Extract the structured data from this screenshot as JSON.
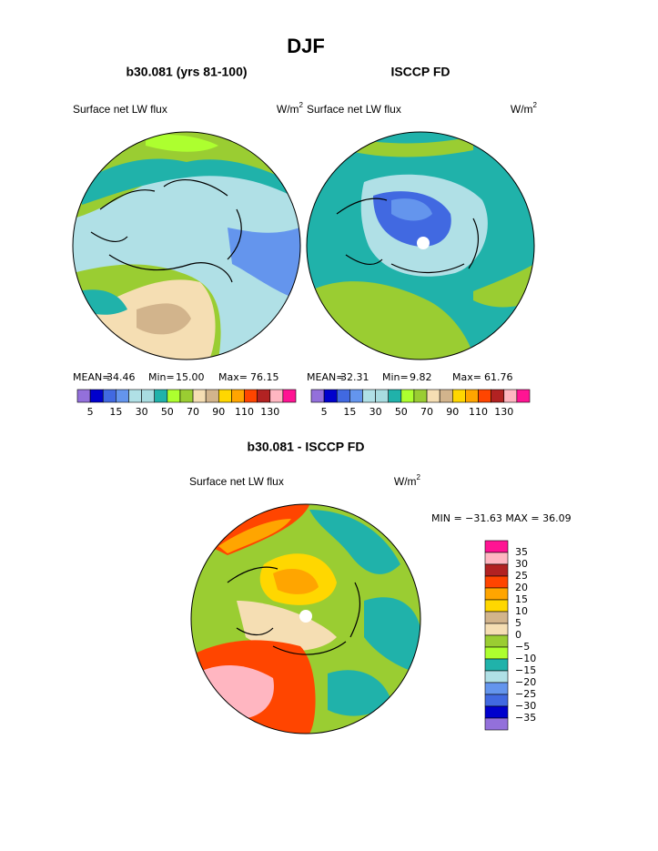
{
  "title": "DJF",
  "panels": [
    {
      "title": "b30.081 (yrs 81-100)",
      "variable": "Surface net LW flux",
      "units": "W/m",
      "units_exp": "2",
      "stats": [
        "MEAN=",
        "34.46",
        "Min=",
        "15.00",
        "Max=",
        "76.15"
      ]
    },
    {
      "title": "ISCCP FD",
      "variable": "Surface net LW flux",
      "units": "W/m",
      "units_exp": "2",
      "stats": [
        "MEAN=",
        "32.31",
        "Min=",
        "9.82",
        "Max=",
        "61.76"
      ]
    }
  ],
  "colorbar": {
    "colors": [
      "#9370db",
      "#0000cd",
      "#4169e1",
      "#6495ed",
      "#b0e0e6",
      "#a8dce0",
      "#20b2aa",
      "#adff2f",
      "#9acd32",
      "#f5deb3",
      "#d2b48c",
      "#ffd700",
      "#ffa500",
      "#ff4500",
      "#b22222",
      "#ffb6c1",
      "#ff1493"
    ],
    "labels": [
      5,
      15,
      30,
      50,
      70,
      90,
      110,
      130
    ]
  },
  "diff": {
    "title": "b30.081 - ISCCP FD",
    "variable": "Surface net LW flux",
    "units": "W/m",
    "units_exp": "2",
    "stats": "MIN = −31.63 MAX =  36.09",
    "colors": [
      "#ff1493",
      "#ffb6c1",
      "#b22222",
      "#ff4500",
      "#ffa500",
      "#ffd700",
      "#d2b48c",
      "#f5deb3",
      "#9acd32",
      "#adff2f",
      "#20b2aa",
      "#b0e0e6",
      "#6495ed",
      "#4169e1",
      "#0000cd",
      "#9370db"
    ],
    "labels": [
      35,
      30,
      25,
      20,
      15,
      10,
      5,
      0,
      {
        "value": -5,
        "label": "−5"
      },
      {
        "value": -10,
        "label": "−10"
      },
      {
        "value": -15,
        "label": "−15"
      },
      {
        "value": -20,
        "label": "−20"
      },
      {
        "value": -25,
        "label": "−25"
      },
      {
        "value": -30,
        "label": "−30"
      },
      {
        "value": -35,
        "label": "−35"
      }
    ]
  }
}
